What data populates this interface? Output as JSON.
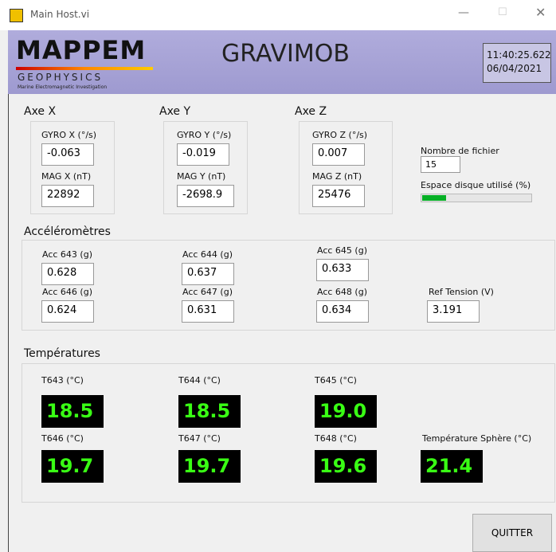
{
  "window": {
    "title": "Main Host.vi"
  },
  "header": {
    "logo": "MAPPEM",
    "logo_sub": "GEOPHYSICS",
    "logo_tagline": "Marine Electromagnetic Investigation",
    "title": "GRAVIMOB",
    "time": "11:40:25.622",
    "date": "06/04/2021"
  },
  "axes": [
    {
      "title": "Axe X",
      "gyro_label": "GYRO X (°/s)",
      "gyro": "-0.063",
      "mag_label": "MAG X (nT)",
      "mag": "22892"
    },
    {
      "title": "Axe Y",
      "gyro_label": "GYRO Y (°/s)",
      "gyro": "-0.019",
      "mag_label": "MAG Y (nT)",
      "mag": "-2698.9"
    },
    {
      "title": "Axe Z",
      "gyro_label": "GYRO Z (°/s)",
      "gyro": "0.007",
      "mag_label": "MAG Z (nT)",
      "mag": "25476"
    }
  ],
  "files": {
    "count_label": "Nombre de fichier",
    "count": "15",
    "disk_label": "Espace disque utilisé (%)",
    "disk_usage": 22
  },
  "accelerometers": {
    "title": "Accéléromètres",
    "items": [
      {
        "label": "Acc 643 (g)",
        "value": "0.628"
      },
      {
        "label": "Acc 644 (g)",
        "value": "0.637"
      },
      {
        "label": "Acc 645 (g)",
        "value": "0.633"
      },
      {
        "label": "Acc 646 (g)",
        "value": "0.624"
      },
      {
        "label": "Acc 647 (g)",
        "value": "0.631"
      },
      {
        "label": "Acc 648 (g)",
        "value": "0.634"
      }
    ],
    "ref_label": "Ref Tension (V)",
    "ref_value": "3.191"
  },
  "temperatures": {
    "title": "Températures",
    "items": [
      {
        "label": "T643 (°C)",
        "value": "18.5"
      },
      {
        "label": "T644 (°C)",
        "value": "18.5"
      },
      {
        "label": "T645 (°C)",
        "value": "19.0"
      },
      {
        "label": "T646 (°C)",
        "value": "19.7"
      },
      {
        "label": "T647 (°C)",
        "value": "19.7"
      },
      {
        "label": "T648 (°C)",
        "value": "19.6"
      }
    ],
    "sphere_label": "Température Sphère (°C)",
    "sphere_value": "21.4"
  },
  "button": "QUITTER"
}
